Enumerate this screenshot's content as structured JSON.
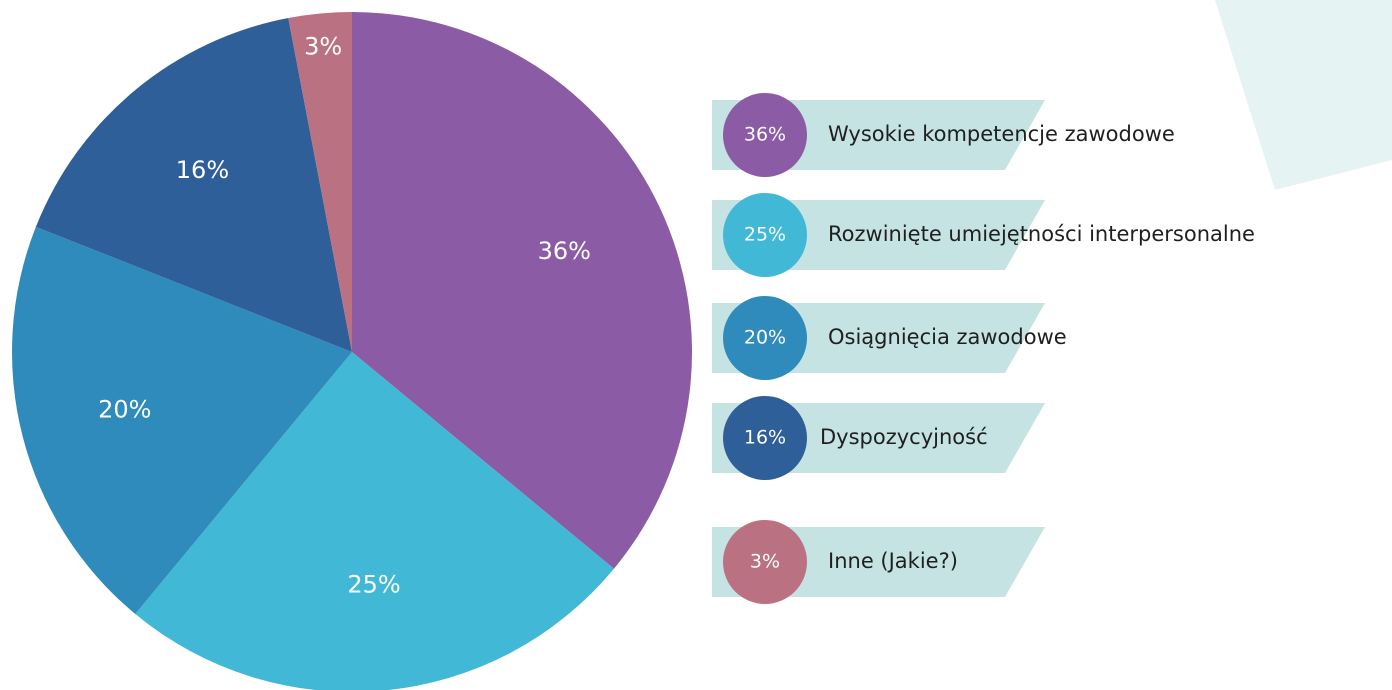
{
  "chart_data": {
    "type": "pie",
    "categories": [
      "Wysokie kompetencje zawodowe",
      "Rozwinięte umiejętności interpersonalne",
      "Osiągnięcia zawodowe",
      "Dyspozycyjność",
      "Inne (Jakie?)"
    ],
    "values": [
      36,
      25,
      20,
      16,
      3
    ],
    "value_labels": [
      "36%",
      "25%",
      "20%",
      "16%",
      "3%"
    ],
    "colors": [
      "#8b5ba6",
      "#41b8d6",
      "#2e8bbb",
      "#2e5f98",
      "#ba7283"
    ]
  }
}
